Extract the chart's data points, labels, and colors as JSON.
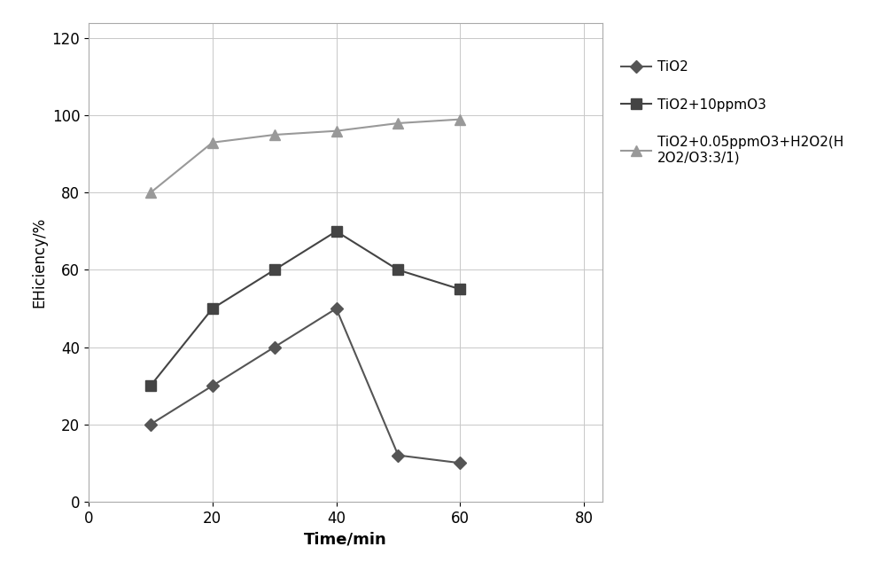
{
  "series": [
    {
      "label": "TiO2",
      "x": [
        10,
        20,
        30,
        40,
        50,
        60
      ],
      "y": [
        20,
        30,
        40,
        50,
        12,
        10
      ],
      "color": "#555555",
      "marker": "D",
      "markersize": 7,
      "linewidth": 1.5
    },
    {
      "label": "TiO2+10ppmO3",
      "x": [
        10,
        20,
        30,
        40,
        50,
        60
      ],
      "y": [
        30,
        50,
        60,
        70,
        60,
        55
      ],
      "color": "#444444",
      "marker": "s",
      "markersize": 8,
      "linewidth": 1.5
    },
    {
      "label": "TiO2+0.05ppmO3+H2O2(H\n2O2/O3:3/1)",
      "x": [
        10,
        20,
        30,
        40,
        50,
        60
      ],
      "y": [
        80,
        93,
        95,
        96,
        98,
        99
      ],
      "color": "#999999",
      "marker": "^",
      "markersize": 8,
      "linewidth": 1.5
    }
  ],
  "xlabel": "Time/min",
  "ylabel": "EHiciency/%",
  "xlim": [
    0,
    83
  ],
  "ylim": [
    0,
    124
  ],
  "xticks": [
    0,
    20,
    40,
    60,
    80
  ],
  "yticks": [
    0,
    20,
    40,
    60,
    80,
    100,
    120
  ],
  "grid": true,
  "background_color": "#ffffff",
  "xlabel_fontsize": 13,
  "ylabel_fontsize": 12,
  "tick_fontsize": 12,
  "figsize": [
    10.0,
    6.43
  ],
  "dpi": 100
}
